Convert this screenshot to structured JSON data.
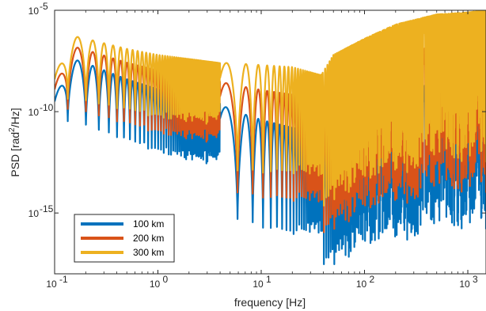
{
  "chart_data": {
    "type": "line",
    "title": "",
    "xlabel": "frequency [Hz]",
    "ylabel": "PSD [rad²/Hz]",
    "ylabel_base": "PSD [rad",
    "ylabel_sup": "2",
    "ylabel_tail": "/Hz]",
    "xscale": "log",
    "yscale": "log",
    "xlim": [
      0.1,
      1500
    ],
    "ylim": [
      1e-18,
      1e-05
    ],
    "x_ticks": [
      0.1,
      1,
      10,
      100,
      1000
    ],
    "x_tick_labels": [
      "10",
      "10",
      "10",
      "10",
      "10"
    ],
    "x_tick_exponents": [
      "-1",
      "0",
      "1",
      "2",
      "3"
    ],
    "y_ticks": [
      1e-15,
      1e-10,
      1e-05
    ],
    "y_tick_labels": [
      "10",
      "10",
      "10"
    ],
    "y_tick_exponents": [
      "-15",
      "-10",
      "-5"
    ],
    "grid": false,
    "legend_position": "bottom-left",
    "series": [
      {
        "name": "100 km",
        "color": "#0072BD",
        "offset_log10": 0.0
      },
      {
        "name": "200 km",
        "color": "#D95319",
        "offset_log10": 0.6
      },
      {
        "name": "300 km",
        "color": "#EDB120",
        "offset_log10": 1.1
      }
    ],
    "envelope": {
      "description_points_x": [
        0.1,
        0.13,
        0.2,
        0.5,
        1,
        2,
        4,
        5,
        10,
        20,
        38,
        50,
        100,
        200,
        500,
        1000,
        1500
      ],
      "upper_log10_100km": [
        -9.5,
        -7.3,
        -7.6,
        -8.4,
        -8.9,
        -9.3,
        -9.6,
        -9.9,
        -10.4,
        -10.8,
        -11.0,
        -10.4,
        -9.6,
        -9.0,
        -8.6,
        -8.4,
        -8.3
      ],
      "upper_log10_300km": [
        -8.4,
        -6.2,
        -6.4,
        -6.9,
        -7.2,
        -7.4,
        -7.6,
        -7.6,
        -7.7,
        -7.8,
        -8.2,
        -7.2,
        -6.4,
        -5.7,
        -5.2,
        -5.1,
        -5.0
      ]
    }
  }
}
